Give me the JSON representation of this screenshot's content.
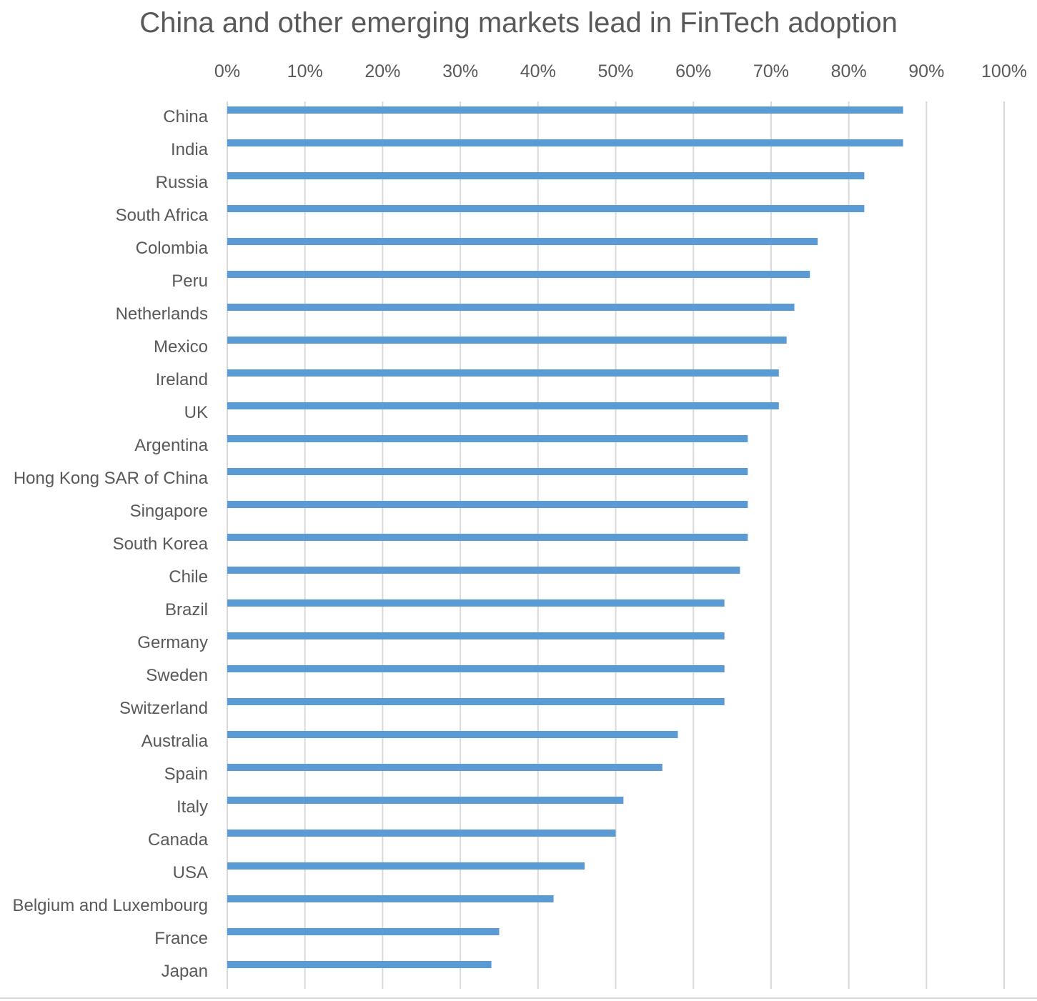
{
  "chart_data": {
    "type": "bar",
    "orientation": "horizontal",
    "title": "China and other emerging markets lead in FinTech adoption",
    "xlabel": "",
    "ylabel": "",
    "xlim": [
      0,
      100
    ],
    "x_tick_values": [
      0,
      10,
      20,
      30,
      40,
      50,
      60,
      70,
      80,
      90,
      100
    ],
    "x_tick_labels": [
      "0%",
      "10%",
      "20%",
      "30%",
      "40%",
      "50%",
      "60%",
      "70%",
      "80%",
      "90%",
      "100%"
    ],
    "x_axis_position": "top",
    "grid": true,
    "legend": "none",
    "colors": {
      "bar": "#5b9bd5",
      "grid": "#d9d9d9",
      "text": "#595959"
    },
    "categories": [
      "China",
      "India",
      "Russia",
      "South Africa",
      "Colombia",
      "Peru",
      "Netherlands",
      "Mexico",
      "Ireland",
      "UK",
      "Argentina",
      "Hong Kong SAR of China",
      "Singapore",
      "South Korea",
      "Chile",
      "Brazil",
      "Germany",
      "Sweden",
      "Switzerland",
      "Australia",
      "Spain",
      "Italy",
      "Canada",
      "USA",
      "Belgium and Luxembourg",
      "France",
      "Japan"
    ],
    "values": [
      87,
      87,
      82,
      82,
      76,
      75,
      73,
      72,
      71,
      71,
      67,
      67,
      67,
      67,
      66,
      64,
      64,
      64,
      64,
      58,
      56,
      51,
      50,
      46,
      42,
      35,
      34
    ]
  }
}
